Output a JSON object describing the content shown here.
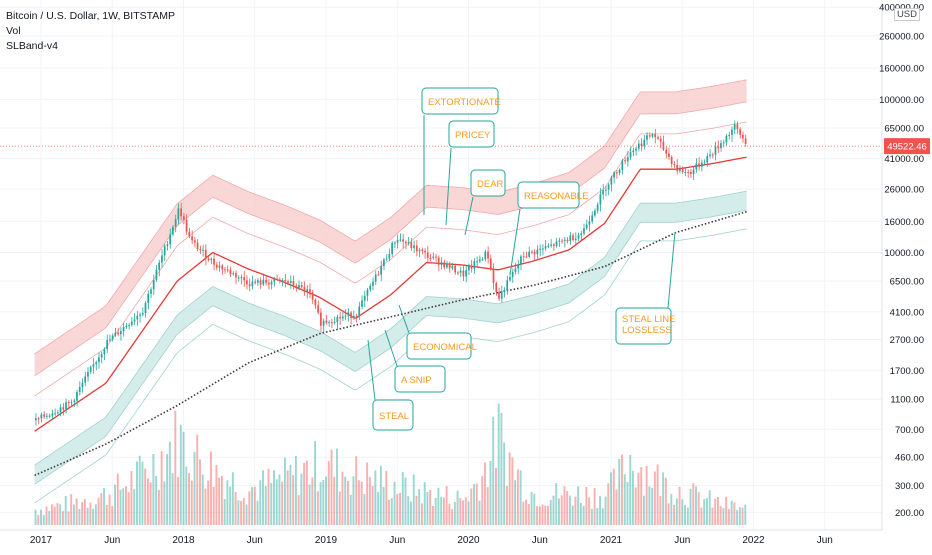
{
  "header": {
    "symbol_line": "Bitcoin / U.S. Dollar, 1W, BITSTAMP",
    "indicator_vol": "Vol",
    "indicator_band": "SLBand-v4",
    "currency": "USD"
  },
  "colors": {
    "up": "#26a69a",
    "down": "#ef5350",
    "mid_line": "#e53935",
    "upper_band": "#f8c9c9",
    "lower_band": "#cde9e6",
    "steal_line": "#3a3a3a",
    "annotation_text": "#f59a23",
    "annotation_border": "#26a69a",
    "price_label_bg": "#ef5350"
  },
  "chart_data": {
    "type": "line",
    "y_scale": "log",
    "ylim": [
      190,
      420000
    ],
    "price_ticks": [
      "400000.00",
      "260000.00",
      "160000.00",
      "100000.00",
      "65000.00",
      "41000.00",
      "26000.00",
      "16000.00",
      "10000.00",
      "6500.00",
      "4100.00",
      "2700.00",
      "1700.00",
      "1100.00",
      "700.00",
      "460.00",
      "300.00",
      "200.00"
    ],
    "x_ticks": [
      "2017",
      "Jun",
      "2018",
      "Jun",
      "2019",
      "Jun",
      "2020",
      "Jun",
      "2021",
      "Jun",
      "2022",
      "Jun"
    ],
    "current_price": "49522.46",
    "series": [
      {
        "kind": "price",
        "x": [
          "2016-12",
          "2017-03",
          "2017-06",
          "2017-09",
          "2017-12-17",
          "2018-01",
          "2018-03",
          "2018-06",
          "2018-09",
          "2018-11",
          "2018-12",
          "2019-03",
          "2019-06-26",
          "2019-09",
          "2019-12",
          "2020-02",
          "2020-03-12",
          "2020-05",
          "2020-08",
          "2020-10",
          "2020-12",
          "2021-02",
          "2021-04-14",
          "2021-06",
          "2021-07",
          "2021-09",
          "2021-11-10",
          "2021-12"
        ],
        "values": [
          800,
          1050,
          2600,
          4200,
          19500,
          12000,
          8500,
          6300,
          6500,
          5500,
          3500,
          4000,
          12500,
          9500,
          7200,
          10000,
          4900,
          9500,
          11500,
          13500,
          27000,
          45000,
          60000,
          35000,
          33000,
          45000,
          66000,
          49522
        ]
      },
      {
        "kind": "band-mid",
        "x": [
          "2016-12",
          "2017-06",
          "2017-12",
          "2018-03",
          "2018-06",
          "2018-09",
          "2018-12",
          "2019-03",
          "2019-06",
          "2019-09",
          "2019-12",
          "2020-03",
          "2020-06",
          "2020-09",
          "2020-12",
          "2021-03",
          "2021-06",
          "2021-09",
          "2021-12"
        ],
        "values": [
          680,
          1400,
          6500,
          10000,
          7800,
          6400,
          5100,
          3700,
          5300,
          8600,
          8300,
          7700,
          8800,
          10400,
          15500,
          35000,
          35000,
          38000,
          42000
        ]
      },
      {
        "kind": "steal-line",
        "x": [
          "2016-12",
          "2017-06",
          "2017-12",
          "2018-06",
          "2018-12",
          "2019-06",
          "2019-12",
          "2020-06",
          "2020-12",
          "2021-06",
          "2021-12"
        ],
        "values": [
          350,
          560,
          1000,
          1900,
          2950,
          3800,
          4900,
          6100,
          8100,
          13500,
          18500
        ]
      }
    ],
    "volume": {
      "ylim": [
        0,
        1
      ],
      "x": [
        "2016-12",
        "2017-06",
        "2017-12",
        "2018-06",
        "2018-12",
        "2019-06",
        "2019-12",
        "2020-03",
        "2020-06",
        "2020-12",
        "2021-02",
        "2021-06",
        "2021-12"
      ],
      "values": [
        0.15,
        0.3,
        0.85,
        0.35,
        0.6,
        0.4,
        0.25,
        0.9,
        0.3,
        0.3,
        0.65,
        0.35,
        0.15
      ]
    },
    "annotations": [
      "EXTORTIONATE",
      "PRICEY",
      "DEAR",
      "REASONABLE",
      "ECONOMICAL",
      "A SNIP",
      "STEAL",
      "STEAL LINE\nLOSSLESS"
    ]
  }
}
